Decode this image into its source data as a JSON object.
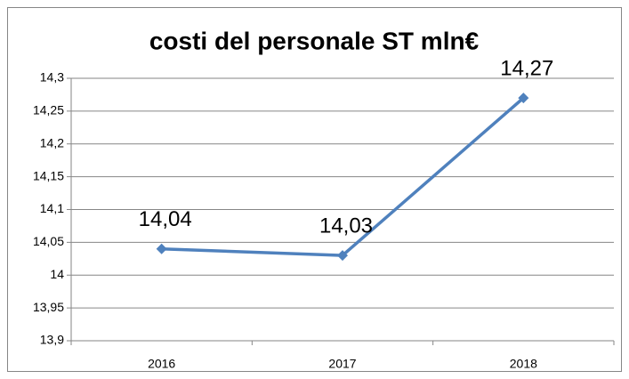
{
  "chart_data": {
    "type": "line",
    "title": "costi del personale ST mln€",
    "categories": [
      "2016",
      "2017",
      "2018"
    ],
    "values": [
      14.04,
      14.03,
      14.27
    ],
    "value_labels": [
      "14,04",
      "14,03",
      "14,27"
    ],
    "color": "#4f81bd",
    "ylim": [
      13.9,
      14.3
    ],
    "yticks": [
      {
        "value": 13.9,
        "label": "13,9"
      },
      {
        "value": 13.95,
        "label": "13,95"
      },
      14,
      {
        "value": 14.05,
        "label": "14,05"
      },
      {
        "value": 14.1,
        "label": "14,1"
      },
      {
        "value": 14.15,
        "label": "14,15"
      },
      {
        "value": 14.2,
        "label": "14,2"
      },
      {
        "value": 14.25,
        "label": "14,25"
      },
      {
        "value": 14.3,
        "label": "14,3"
      }
    ],
    "grid": true
  }
}
